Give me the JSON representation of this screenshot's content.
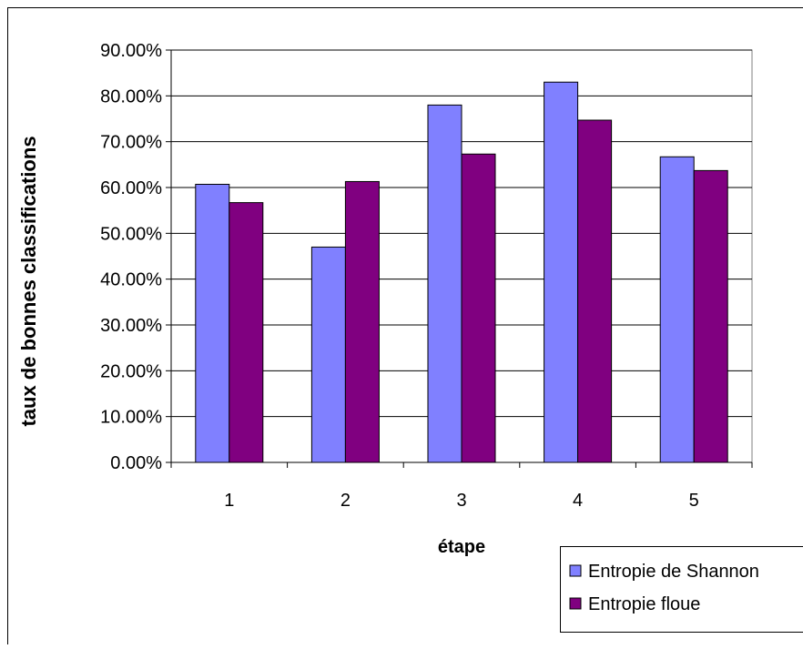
{
  "chart_data": {
    "type": "bar",
    "title": "",
    "xlabel": "étape",
    "ylabel": "taux de bonnes classifications",
    "categories": [
      "1",
      "2",
      "3",
      "4",
      "5"
    ],
    "y_ticks": [
      "0.00%",
      "10.00%",
      "20.00%",
      "30.00%",
      "40.00%",
      "50.00%",
      "60.00%",
      "70.00%",
      "80.00%",
      "90.00%"
    ],
    "ylim": [
      0,
      90
    ],
    "grid": "horizontal",
    "legend_position": "bottom-right",
    "series": [
      {
        "name": "Entropie de Shannon",
        "color": "#8080ff",
        "values": [
          60.7,
          47.0,
          78.0,
          83.0,
          66.7
        ]
      },
      {
        "name": "Entropie floue",
        "color": "#800080",
        "values": [
          56.7,
          61.3,
          67.3,
          74.7,
          63.7
        ]
      }
    ]
  }
}
